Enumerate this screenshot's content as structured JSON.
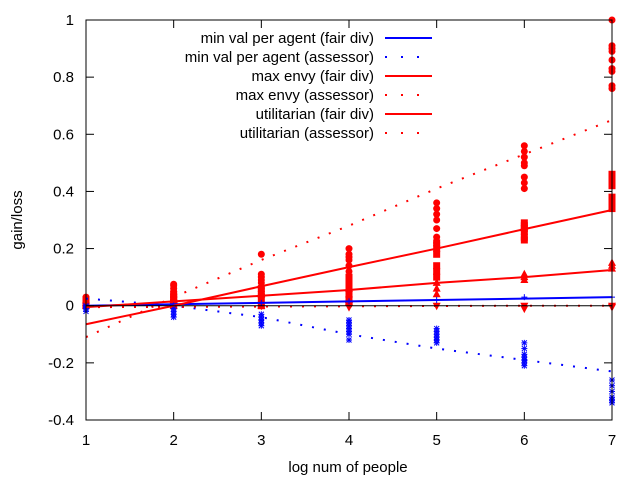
{
  "chart_data": {
    "type": "line",
    "title": "",
    "xlabel": "log num of people",
    "ylabel": "gain/loss",
    "xlim": [
      1,
      7
    ],
    "ylim": [
      -0.4,
      1.0
    ],
    "xticks": [
      1,
      2,
      3,
      4,
      5,
      6,
      7
    ],
    "yticks": [
      -0.4,
      -0.2,
      0,
      0.2,
      0.4,
      0.6,
      0.8,
      1
    ],
    "ytick_labels": [
      "-0.4",
      "-0.2",
      "0",
      "0.2",
      "0.4",
      "0.6",
      "0.8",
      "1"
    ],
    "grid": false,
    "legend_position": "top-center",
    "zero_line": true,
    "series": [
      {
        "name": "min val per agent (fair div)",
        "color": "#0000ff",
        "style": "solid",
        "x": [
          1,
          2,
          3,
          4,
          5,
          6,
          7
        ],
        "y": [
          0.0,
          0.005,
          0.01,
          0.015,
          0.02,
          0.025,
          0.03
        ]
      },
      {
        "name": "min val per agent (assessor)",
        "color": "#0000ff",
        "style": "dotted",
        "x": [
          1,
          2,
          3,
          4,
          5,
          6,
          7
        ],
        "y": [
          0.025,
          0.0,
          -0.04,
          -0.1,
          -0.15,
          -0.19,
          -0.23
        ]
      },
      {
        "name": "max envy (fair div)",
        "color": "#ff0000",
        "style": "solid",
        "x": [
          1,
          2,
          3,
          4,
          5,
          6,
          7
        ],
        "y": [
          -0.005,
          0.015,
          0.035,
          0.055,
          0.08,
          0.1,
          0.125
        ]
      },
      {
        "name": "max envy (assessor)",
        "color": "#ff0000",
        "style": "dotted",
        "x": [
          1,
          2,
          3,
          4,
          5,
          6,
          7
        ],
        "y": [
          -0.11,
          0.03,
          0.16,
          0.28,
          0.41,
          0.53,
          0.65
        ]
      },
      {
        "name": "utilitarian (fair div)",
        "color": "#ff0000",
        "style": "solid",
        "x": [
          1,
          2,
          3,
          4,
          5,
          6,
          7
        ],
        "y": [
          -0.065,
          0.0,
          0.068,
          0.135,
          0.2,
          0.268,
          0.335
        ]
      },
      {
        "name": "utilitarian (assessor)",
        "color": "#ff0000",
        "style": "dotted",
        "x": [
          1,
          2,
          3,
          4,
          5,
          6,
          7
        ],
        "y": [
          -0.005,
          -0.004,
          -0.003,
          -0.002,
          -0.001,
          0.0,
          0.0
        ]
      }
    ],
    "scatter_points": {
      "red_circles": [
        [
          1,
          0.005
        ],
        [
          1,
          0.01
        ],
        [
          1,
          0.015
        ],
        [
          1,
          0.02
        ],
        [
          1,
          0.025
        ],
        [
          1,
          0.03
        ],
        [
          2,
          0.01
        ],
        [
          2,
          0.02
        ],
        [
          2,
          0.03
        ],
        [
          2,
          0.04
        ],
        [
          2,
          0.05
        ],
        [
          2,
          0.06
        ],
        [
          2,
          0.07
        ],
        [
          2,
          0.075
        ],
        [
          3,
          0.04
        ],
        [
          3,
          0.06
        ],
        [
          3,
          0.08
        ],
        [
          3,
          0.09
        ],
        [
          3,
          0.1
        ],
        [
          3,
          0.11
        ],
        [
          3,
          0.18
        ],
        [
          4,
          0.08
        ],
        [
          4,
          0.1
        ],
        [
          4,
          0.12
        ],
        [
          4,
          0.14
        ],
        [
          4,
          0.16
        ],
        [
          4,
          0.17
        ],
        [
          4,
          0.18
        ],
        [
          4,
          0.2
        ],
        [
          5,
          0.22
        ],
        [
          5,
          0.24
        ],
        [
          5,
          0.27
        ],
        [
          5,
          0.3
        ],
        [
          5,
          0.32
        ],
        [
          5,
          0.34
        ],
        [
          5,
          0.36
        ],
        [
          6,
          0.41
        ],
        [
          6,
          0.43
        ],
        [
          6,
          0.45
        ],
        [
          6,
          0.49
        ],
        [
          6,
          0.5
        ],
        [
          6,
          0.52
        ],
        [
          6,
          0.54
        ],
        [
          6,
          0.56
        ],
        [
          7,
          0.76
        ],
        [
          7,
          0.77
        ],
        [
          7,
          0.82
        ],
        [
          7,
          0.83
        ],
        [
          7,
          0.86
        ],
        [
          7,
          0.89
        ],
        [
          7,
          0.9
        ],
        [
          7,
          0.91
        ],
        [
          7,
          1.0
        ]
      ],
      "red_squares": [
        [
          1,
          0.0
        ],
        [
          1,
          0.01
        ],
        [
          1,
          0.02
        ],
        [
          2,
          0.0
        ],
        [
          2,
          0.01
        ],
        [
          2,
          0.02
        ],
        [
          2,
          0.03
        ],
        [
          2,
          0.04
        ],
        [
          3,
          0.0
        ],
        [
          3,
          0.02
        ],
        [
          3,
          0.04
        ],
        [
          3,
          0.06
        ],
        [
          4,
          0.02
        ],
        [
          4,
          0.04
        ],
        [
          4,
          0.06
        ],
        [
          4,
          0.08
        ],
        [
          4,
          0.1
        ],
        [
          5,
          0.1
        ],
        [
          5,
          0.12
        ],
        [
          5,
          0.14
        ],
        [
          5,
          0.18
        ],
        [
          5,
          0.2
        ],
        [
          5,
          0.22
        ],
        [
          6,
          0.23
        ],
        [
          6,
          0.24
        ],
        [
          6,
          0.26
        ],
        [
          6,
          0.27
        ],
        [
          6,
          0.28
        ],
        [
          6,
          0.29
        ],
        [
          7,
          0.34
        ],
        [
          7,
          0.36
        ],
        [
          7,
          0.38
        ],
        [
          7,
          0.42
        ],
        [
          7,
          0.44
        ],
        [
          7,
          0.46
        ]
      ],
      "red_triangles": [
        [
          1,
          0.0
        ],
        [
          1,
          0.005
        ],
        [
          1,
          0.01
        ],
        [
          2,
          0.0
        ],
        [
          2,
          0.01
        ],
        [
          2,
          0.02
        ],
        [
          3,
          0.0
        ],
        [
          3,
          0.01
        ],
        [
          3,
          0.02
        ],
        [
          3,
          0.04
        ],
        [
          4,
          0.01
        ],
        [
          4,
          0.02
        ],
        [
          4,
          0.04
        ],
        [
          4,
          0.06
        ],
        [
          5,
          0.04
        ],
        [
          5,
          0.06
        ],
        [
          5,
          0.08
        ],
        [
          6,
          0.09
        ],
        [
          6,
          0.1
        ],
        [
          6,
          0.11
        ],
        [
          7,
          0.13
        ],
        [
          7,
          0.14
        ],
        [
          7,
          0.15
        ]
      ],
      "red_down_triangles": [
        [
          1,
          0.0
        ],
        [
          2,
          0.0
        ],
        [
          3,
          0.0
        ],
        [
          4,
          0.0
        ],
        [
          4,
          -0.005
        ],
        [
          5,
          0.0
        ],
        [
          6,
          0.0
        ],
        [
          6,
          -0.01
        ],
        [
          7,
          0.0
        ],
        [
          7,
          -0.005
        ]
      ],
      "blue_stars": [
        [
          1,
          -0.005
        ],
        [
          1,
          -0.01
        ],
        [
          1,
          -0.02
        ],
        [
          1,
          0.0
        ],
        [
          2,
          -0.01
        ],
        [
          2,
          -0.02
        ],
        [
          2,
          -0.03
        ],
        [
          2,
          -0.04
        ],
        [
          3,
          -0.03
        ],
        [
          3,
          -0.04
        ],
        [
          3,
          -0.05
        ],
        [
          3,
          -0.06
        ],
        [
          3,
          -0.07
        ],
        [
          4,
          -0.05
        ],
        [
          4,
          -0.06
        ],
        [
          4,
          -0.07
        ],
        [
          4,
          -0.08
        ],
        [
          4,
          -0.09
        ],
        [
          4,
          -0.1
        ],
        [
          4,
          -0.12
        ],
        [
          5,
          -0.08
        ],
        [
          5,
          -0.09
        ],
        [
          5,
          -0.1
        ],
        [
          5,
          -0.11
        ],
        [
          5,
          -0.12
        ],
        [
          5,
          -0.13
        ],
        [
          6,
          -0.13
        ],
        [
          6,
          -0.15
        ],
        [
          6,
          -0.17
        ],
        [
          6,
          -0.18
        ],
        [
          6,
          -0.19
        ],
        [
          6,
          -0.2
        ],
        [
          6,
          -0.21
        ],
        [
          7,
          -0.26
        ],
        [
          7,
          -0.28
        ],
        [
          7,
          -0.3
        ],
        [
          7,
          -0.32
        ],
        [
          7,
          -0.33
        ],
        [
          7,
          -0.34
        ]
      ],
      "blue_plus": [
        [
          1,
          0.0
        ],
        [
          2,
          0.005
        ],
        [
          3,
          0.01
        ],
        [
          4,
          0.015
        ],
        [
          5,
          0.02
        ],
        [
          6,
          0.03
        ],
        [
          7,
          0.03
        ]
      ]
    }
  }
}
